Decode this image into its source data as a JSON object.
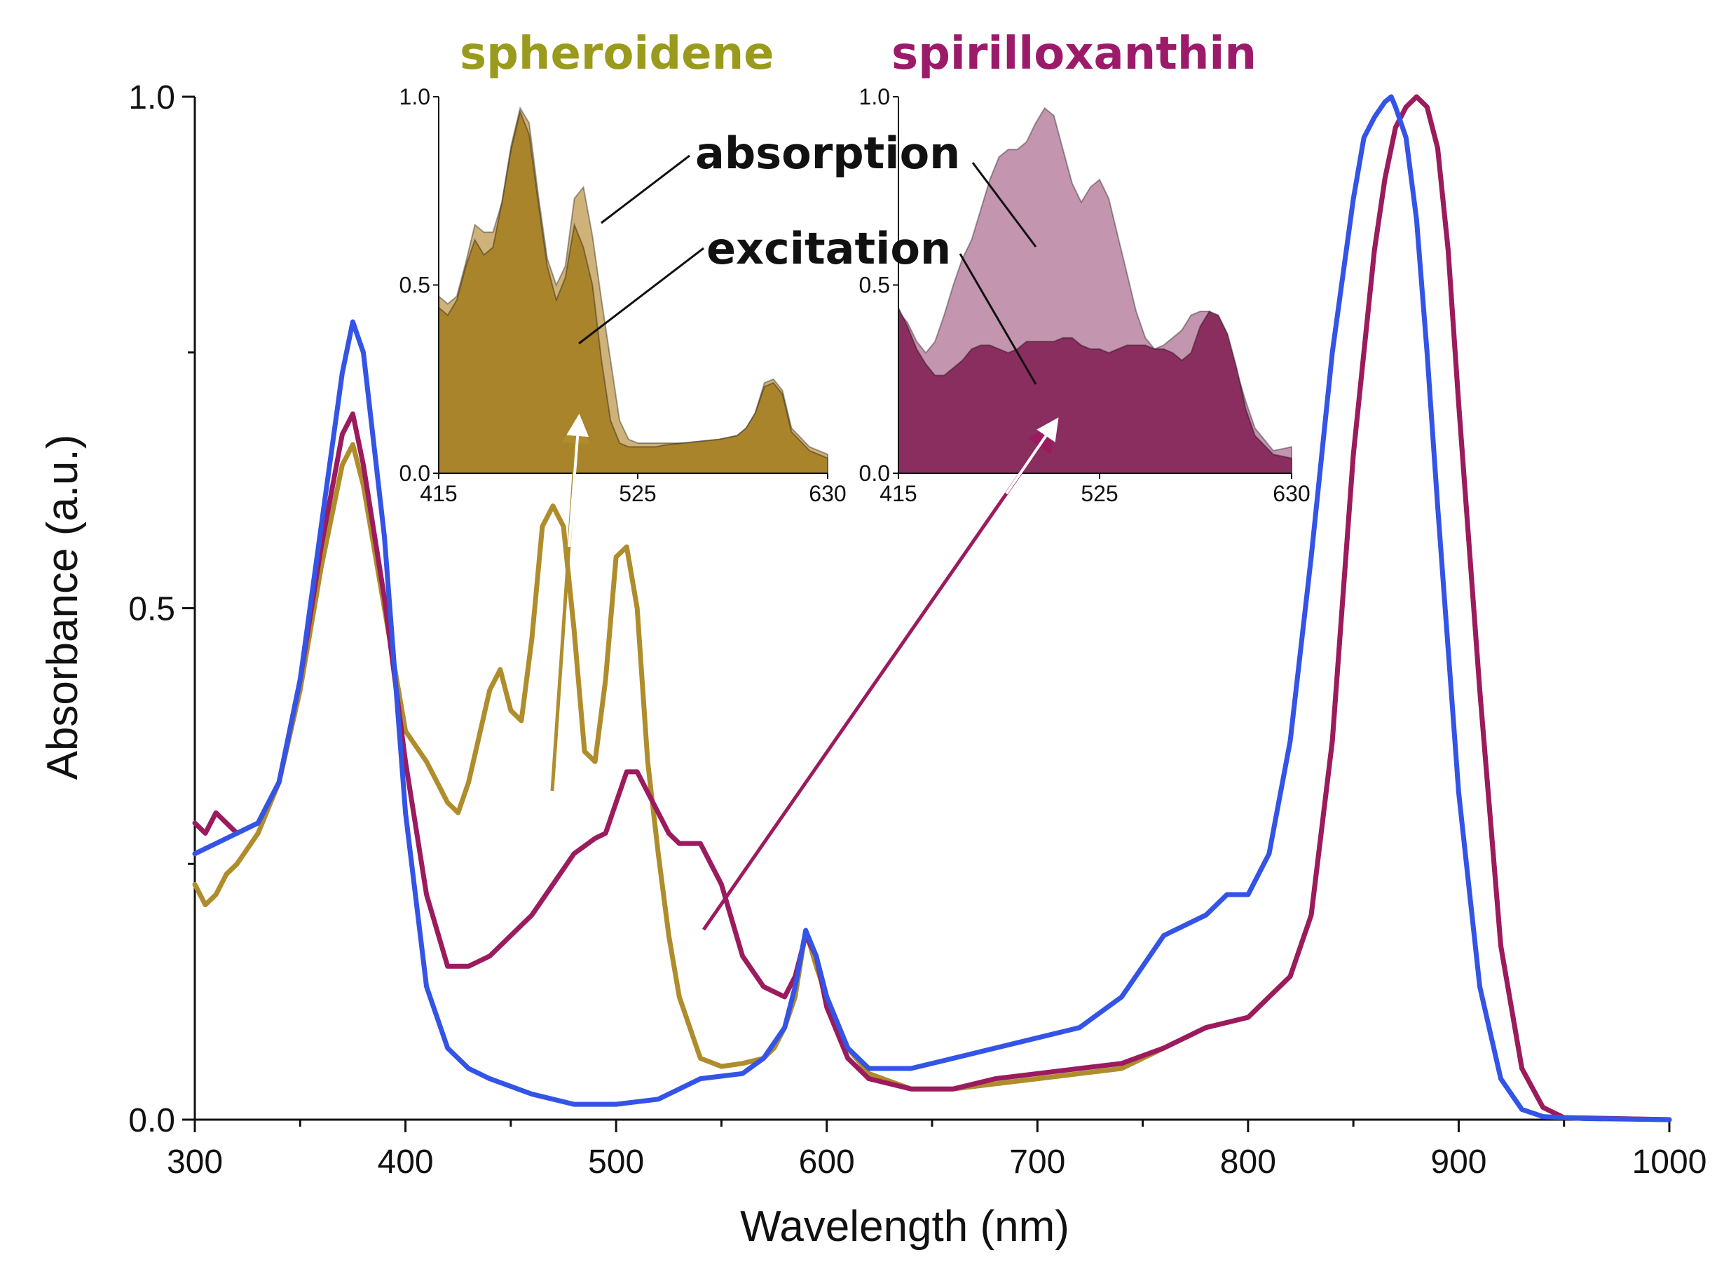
{
  "colors": {
    "spheroidene": "#B08D2C",
    "spirilloxanthin": "#9B1B5E",
    "blue": "#3354E6",
    "spheroidene_label": "#9A9A1C",
    "spirilloxanthin_label": "#9B1B6A",
    "spheroidene_abs_fill": "#CFB27A",
    "spheroidene_exc_fill": "#A9842B",
    "spirillo_abs_fill": "#C495AE",
    "spirillo_exc_fill": "#8A2D5F",
    "arrow_white": "#ffffff"
  },
  "labels": {
    "spheroidene": "spheroidene",
    "spirilloxanthin": "spirilloxanthin",
    "absorption": "absorption",
    "excitation": "excitation"
  },
  "chart_data": [
    {
      "type": "line",
      "xlabel": "Wavelength (nm)",
      "ylabel": "Absorbance (a.u.)",
      "xlim": [
        300,
        1000
      ],
      "ylim": [
        0.0,
        1.0
      ],
      "xticks": [
        "300",
        "400",
        "500",
        "600",
        "700",
        "800",
        "900",
        "1000"
      ],
      "yticks": [
        "0.0",
        "0.5",
        "1.0"
      ],
      "series": [
        {
          "color_key": "spheroidene",
          "x": [
            300,
            305,
            310,
            315,
            320,
            330,
            340,
            350,
            360,
            370,
            375,
            380,
            390,
            400,
            410,
            420,
            425,
            430,
            440,
            445,
            450,
            455,
            460,
            465,
            470,
            475,
            480,
            485,
            490,
            495,
            500,
            505,
            510,
            515,
            520,
            525,
            530,
            540,
            550,
            560,
            570,
            575,
            580,
            585,
            590,
            595,
            600,
            610,
            620,
            640,
            660,
            680,
            700,
            720,
            740,
            760,
            780,
            800,
            810,
            820,
            830,
            840,
            850,
            860,
            865,
            870,
            875,
            880,
            885,
            890,
            895,
            900,
            910,
            920,
            930,
            940,
            950,
            1000
          ],
          "y": [
            0.23,
            0.21,
            0.22,
            0.24,
            0.25,
            0.28,
            0.33,
            0.42,
            0.54,
            0.64,
            0.66,
            0.62,
            0.5,
            0.38,
            0.35,
            0.31,
            0.3,
            0.33,
            0.42,
            0.44,
            0.4,
            0.39,
            0.47,
            0.58,
            0.6,
            0.58,
            0.48,
            0.36,
            0.35,
            0.43,
            0.55,
            0.56,
            0.5,
            0.35,
            0.26,
            0.18,
            0.12,
            0.06,
            0.052,
            0.055,
            0.06,
            0.07,
            0.09,
            0.12,
            0.185,
            0.15,
            0.12,
            0.07,
            0.045,
            0.03,
            0.03,
            0.035,
            0.04,
            0.045,
            0.05,
            0.07,
            0.09,
            0.1,
            0.12,
            0.14,
            0.2,
            0.37,
            0.65,
            0.85,
            0.92,
            0.97,
            0.99,
            1.0,
            0.99,
            0.95,
            0.85,
            0.7,
            0.42,
            0.17,
            0.05,
            0.012,
            0.002,
            0.0
          ]
        },
        {
          "color_key": "spirilloxanthin",
          "x": [
            300,
            305,
            310,
            315,
            320,
            330,
            340,
            350,
            360,
            370,
            375,
            380,
            390,
            400,
            410,
            420,
            430,
            440,
            450,
            460,
            470,
            480,
            490,
            495,
            500,
            505,
            510,
            515,
            520,
            525,
            530,
            540,
            550,
            560,
            570,
            580,
            585,
            590,
            595,
            600,
            610,
            620,
            640,
            660,
            680,
            700,
            720,
            740,
            760,
            780,
            800,
            810,
            820,
            830,
            840,
            850,
            860,
            865,
            870,
            875,
            880,
            885,
            890,
            895,
            900,
            910,
            920,
            930,
            940,
            950,
            1000
          ],
          "y": [
            0.29,
            0.28,
            0.3,
            0.29,
            0.28,
            0.29,
            0.33,
            0.43,
            0.56,
            0.67,
            0.69,
            0.64,
            0.51,
            0.35,
            0.22,
            0.15,
            0.15,
            0.16,
            0.18,
            0.2,
            0.23,
            0.26,
            0.275,
            0.28,
            0.31,
            0.34,
            0.34,
            0.32,
            0.3,
            0.28,
            0.27,
            0.27,
            0.23,
            0.16,
            0.13,
            0.12,
            0.14,
            0.18,
            0.16,
            0.11,
            0.06,
            0.04,
            0.03,
            0.03,
            0.04,
            0.045,
            0.05,
            0.055,
            0.07,
            0.09,
            0.1,
            0.12,
            0.14,
            0.2,
            0.37,
            0.65,
            0.85,
            0.92,
            0.97,
            0.99,
            1.0,
            0.99,
            0.95,
            0.85,
            0.7,
            0.42,
            0.17,
            0.05,
            0.012,
            0.002,
            0.0
          ]
        },
        {
          "color_key": "blue",
          "x": [
            300,
            310,
            320,
            330,
            340,
            350,
            360,
            370,
            375,
            380,
            390,
            400,
            410,
            420,
            430,
            440,
            460,
            480,
            500,
            520,
            540,
            560,
            570,
            580,
            585,
            590,
            595,
            600,
            610,
            620,
            640,
            660,
            680,
            700,
            720,
            740,
            750,
            760,
            780,
            790,
            800,
            810,
            820,
            830,
            840,
            850,
            855,
            860,
            865,
            868,
            870,
            875,
            880,
            885,
            890,
            900,
            910,
            920,
            930,
            940,
            960,
            1000
          ],
          "y": [
            0.26,
            0.27,
            0.28,
            0.29,
            0.33,
            0.43,
            0.58,
            0.73,
            0.78,
            0.75,
            0.57,
            0.3,
            0.13,
            0.07,
            0.05,
            0.04,
            0.025,
            0.015,
            0.015,
            0.02,
            0.04,
            0.045,
            0.06,
            0.09,
            0.13,
            0.185,
            0.16,
            0.12,
            0.07,
            0.05,
            0.05,
            0.06,
            0.07,
            0.08,
            0.09,
            0.12,
            0.15,
            0.18,
            0.2,
            0.22,
            0.22,
            0.26,
            0.37,
            0.55,
            0.75,
            0.9,
            0.96,
            0.98,
            0.995,
            1.0,
            0.99,
            0.96,
            0.88,
            0.75,
            0.6,
            0.32,
            0.13,
            0.04,
            0.01,
            0.003,
            0.001,
            0.0
          ]
        }
      ]
    },
    {
      "type": "area",
      "title": "spheroidene",
      "xlim": [
        415,
        630
      ],
      "ylim": [
        0.0,
        1.0
      ],
      "xticks": [
        "415",
        "525",
        "630"
      ],
      "yticks": [
        "0.0",
        "0.5",
        "1.0"
      ],
      "series": [
        {
          "color_key": "spheroidene_abs_fill",
          "x": [
            415,
            420,
            425,
            430,
            435,
            440,
            445,
            450,
            455,
            460,
            465,
            470,
            475,
            480,
            485,
            490,
            495,
            500,
            505,
            510,
            515,
            520,
            525,
            530,
            535,
            540,
            550,
            560,
            570,
            580,
            585,
            590,
            595,
            600,
            605,
            610,
            620,
            630
          ],
          "y": [
            0.47,
            0.45,
            0.47,
            0.56,
            0.66,
            0.64,
            0.64,
            0.72,
            0.87,
            0.97,
            0.93,
            0.74,
            0.57,
            0.5,
            0.55,
            0.73,
            0.76,
            0.63,
            0.46,
            0.3,
            0.14,
            0.09,
            0.08,
            0.08,
            0.08,
            0.08,
            0.08,
            0.085,
            0.09,
            0.1,
            0.12,
            0.16,
            0.24,
            0.25,
            0.22,
            0.12,
            0.07,
            0.05
          ]
        },
        {
          "color_key": "spheroidene_exc_fill",
          "x": [
            415,
            420,
            425,
            430,
            435,
            440,
            445,
            450,
            455,
            460,
            465,
            470,
            475,
            480,
            485,
            490,
            495,
            500,
            505,
            510,
            515,
            520,
            525,
            530,
            535,
            540,
            550,
            560,
            570,
            580,
            585,
            590,
            595,
            600,
            605,
            610,
            620,
            630
          ],
          "y": [
            0.44,
            0.42,
            0.46,
            0.55,
            0.62,
            0.58,
            0.6,
            0.72,
            0.86,
            0.96,
            0.9,
            0.72,
            0.55,
            0.46,
            0.52,
            0.66,
            0.6,
            0.5,
            0.3,
            0.14,
            0.08,
            0.07,
            0.07,
            0.07,
            0.07,
            0.075,
            0.08,
            0.085,
            0.09,
            0.1,
            0.12,
            0.16,
            0.23,
            0.24,
            0.21,
            0.11,
            0.06,
            0.04
          ]
        }
      ]
    },
    {
      "type": "area",
      "title": "spirilloxanthin",
      "xlim": [
        415,
        630
      ],
      "ylim": [
        0.0,
        1.0
      ],
      "xticks": [
        "415",
        "525",
        "630"
      ],
      "yticks": [
        "0.0",
        "0.5",
        "1.0"
      ],
      "series": [
        {
          "color_key": "spirillo_abs_fill",
          "x": [
            415,
            420,
            425,
            430,
            435,
            440,
            445,
            450,
            455,
            460,
            465,
            470,
            475,
            480,
            485,
            490,
            495,
            500,
            505,
            510,
            515,
            520,
            525,
            530,
            535,
            540,
            545,
            550,
            555,
            560,
            565,
            570,
            575,
            580,
            585,
            590,
            595,
            600,
            605,
            610,
            620,
            630
          ],
          "y": [
            0.43,
            0.4,
            0.35,
            0.32,
            0.35,
            0.42,
            0.5,
            0.57,
            0.62,
            0.7,
            0.78,
            0.84,
            0.86,
            0.86,
            0.88,
            0.93,
            0.97,
            0.95,
            0.86,
            0.77,
            0.72,
            0.76,
            0.78,
            0.73,
            0.63,
            0.53,
            0.43,
            0.36,
            0.33,
            0.34,
            0.36,
            0.38,
            0.42,
            0.43,
            0.43,
            0.41,
            0.35,
            0.27,
            0.19,
            0.12,
            0.06,
            0.07
          ]
        },
        {
          "color_key": "spirillo_exc_fill",
          "x": [
            415,
            420,
            425,
            430,
            435,
            440,
            445,
            450,
            455,
            460,
            465,
            470,
            475,
            480,
            485,
            490,
            495,
            500,
            505,
            510,
            515,
            520,
            525,
            530,
            535,
            540,
            545,
            550,
            555,
            560,
            565,
            570,
            575,
            580,
            585,
            590,
            595,
            600,
            605,
            610,
            620,
            630
          ],
          "y": [
            0.44,
            0.39,
            0.33,
            0.29,
            0.26,
            0.26,
            0.28,
            0.3,
            0.33,
            0.34,
            0.34,
            0.33,
            0.32,
            0.33,
            0.35,
            0.35,
            0.35,
            0.35,
            0.36,
            0.36,
            0.34,
            0.33,
            0.33,
            0.32,
            0.33,
            0.34,
            0.34,
            0.34,
            0.33,
            0.33,
            0.32,
            0.3,
            0.32,
            0.39,
            0.43,
            0.42,
            0.37,
            0.28,
            0.17,
            0.1,
            0.05,
            0.04
          ]
        }
      ]
    }
  ]
}
